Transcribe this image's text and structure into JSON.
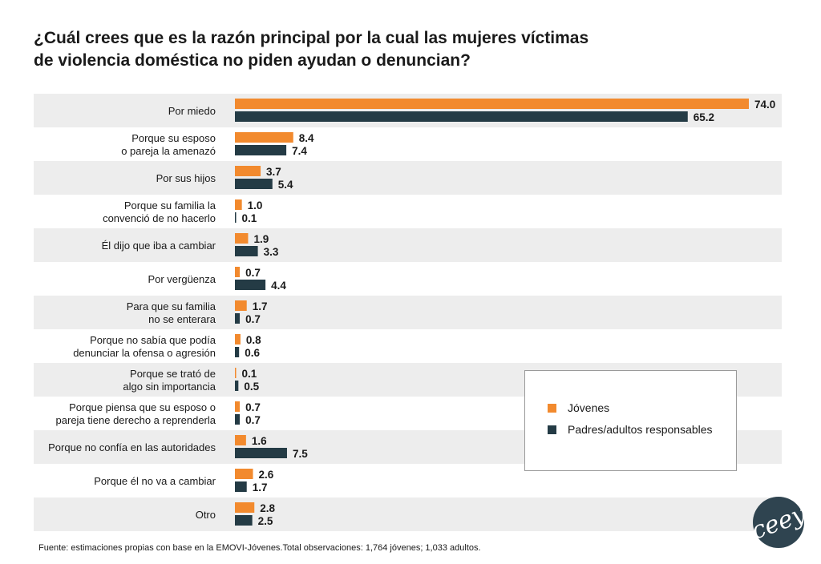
{
  "title_lines": [
    "¿Cuál crees que es la razón principal por la cual las mujeres víctimas",
    "de violencia doméstica no piden ayudan o denuncian?"
  ],
  "source": "Fuente: estimaciones propias con base en la EMOVI-Jóvenes.Total observaciones: 1,764 jóvenes; 1,033 adultos.",
  "legend": [
    {
      "label": "Jóvenes",
      "color": "#f28a2e"
    },
    {
      "label": "Padres/adultos responsables",
      "color": "#243b45"
    }
  ],
  "logo": {
    "text": "ceey",
    "color": "#2f4450"
  },
  "chart_data": {
    "type": "bar",
    "orientation": "horizontal",
    "categories": [
      [
        "Por miedo"
      ],
      [
        "Porque su esposo",
        "o pareja la amenazó"
      ],
      [
        "Por sus hijos"
      ],
      [
        "Porque su familia la",
        "convenció de no hacerlo"
      ],
      [
        "Él dijo que iba a cambiar"
      ],
      [
        "Por vergüenza"
      ],
      [
        "Para que su familia",
        "no se enterara"
      ],
      [
        "Porque no sabía que podía",
        "denunciar la ofensa o agresión"
      ],
      [
        "Porque se trató de",
        "algo sin importancia"
      ],
      [
        "Porque piensa que su esposo o",
        "pareja tiene derecho a reprenderla"
      ],
      [
        "Porque no confía en las autoridades"
      ],
      [
        "Porque él no va a cambiar"
      ],
      [
        "Otro"
      ]
    ],
    "series": [
      {
        "name": "Jóvenes",
        "color": "#f28a2e",
        "values": [
          74.0,
          8.4,
          3.7,
          1.0,
          1.9,
          0.7,
          1.7,
          0.8,
          0.1,
          0.7,
          1.6,
          2.6,
          2.8
        ],
        "labels": [
          "74.0",
          "8.4",
          "3.7",
          "1.0",
          "1.9",
          "0.7",
          "1.7",
          "0.8",
          "0.1",
          "0.7",
          "1.6",
          "2.6",
          "2.8"
        ]
      },
      {
        "name": "Padres/adultos responsables",
        "color": "#243b45",
        "values": [
          65.2,
          7.4,
          5.4,
          0.1,
          3.3,
          4.4,
          0.7,
          0.6,
          0.5,
          0.7,
          7.5,
          1.7,
          2.5
        ],
        "labels": [
          "65.2",
          "7.4",
          "5.4",
          "0.1",
          "3.3",
          "4.4",
          "0.7",
          "0.6",
          "0.5",
          "0.7",
          "7.5",
          "1.7",
          "2.5"
        ]
      }
    ],
    "xlim": [
      0,
      78
    ],
    "legend_position": "lower-right",
    "grid": false,
    "row_banding": [
      "#ededed",
      "#ffffff"
    ]
  }
}
